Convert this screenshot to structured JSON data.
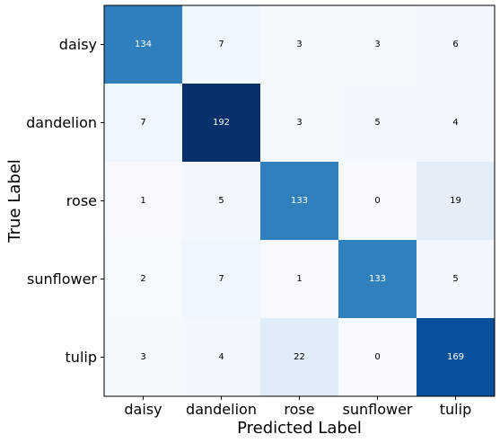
{
  "chart_data": {
    "type": "heatmap",
    "title": "",
    "xlabel": "Predicted Label",
    "ylabel": "True Label",
    "x_categories": [
      "daisy",
      "dandelion",
      "rose",
      "sunflower",
      "tulip"
    ],
    "y_categories": [
      "daisy",
      "dandelion",
      "rose",
      "sunflower",
      "tulip"
    ],
    "matrix": [
      [
        134,
        7,
        3,
        3,
        6
      ],
      [
        7,
        192,
        3,
        5,
        4
      ],
      [
        1,
        5,
        133,
        0,
        19
      ],
      [
        2,
        7,
        1,
        133,
        5
      ],
      [
        3,
        4,
        22,
        0,
        169
      ]
    ],
    "colormap": "Blues",
    "value_range": [
      0,
      192
    ],
    "grid": false,
    "colorbar": false
  }
}
